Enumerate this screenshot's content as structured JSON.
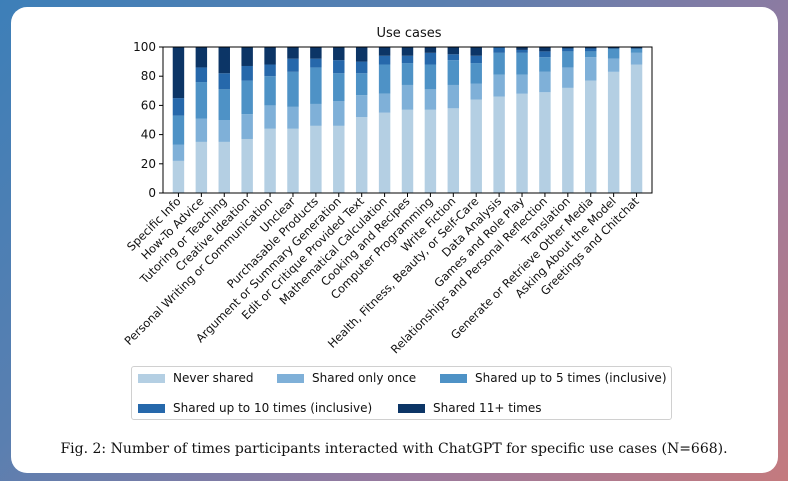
{
  "caption": "Fig. 2: Number of times participants interacted with ChatGPT for specific use cases (N=668).",
  "colors": {
    "series": [
      "#b4cfe3",
      "#7fb0d8",
      "#4e92c6",
      "#2668ab",
      "#0c3566"
    ],
    "background_start": "#3d7fb8",
    "background_end": "#c47a7e"
  },
  "chart_data": {
    "type": "bar",
    "stacked": true,
    "title": "Use cases",
    "xlabel": "",
    "ylabel": "",
    "ylim": [
      0,
      100
    ],
    "yticks": [
      0,
      20,
      40,
      60,
      80,
      100
    ],
    "grid": false,
    "legend_position": "below",
    "categories": [
      "Specific Info",
      "How-To Advice",
      "Tutoring or Teaching",
      "Creative Ideation",
      "Personal Writing or Communication",
      "Unclear",
      "Purchasable Products",
      "Argument or Summary Generation",
      "Edit or Critique Provided Text",
      "Mathematical Calculation",
      "Cooking and Recipes",
      "Computer Programming",
      "Write Fiction",
      "Health, Fitness, Beauty, or Self-Care",
      "Data Analysis",
      "Games and Role Play",
      "Relationships and Personal Reflection",
      "Translation",
      "Generate or Retrieve Other Media",
      "Asking About the Model",
      "Greetings and Chitchat"
    ],
    "series": [
      {
        "name": "Never shared",
        "values": [
          22,
          35,
          35,
          37,
          44,
          44,
          46,
          46,
          52,
          55,
          57,
          57,
          58,
          64,
          66,
          68,
          69,
          72,
          77,
          83,
          88
        ]
      },
      {
        "name": "Shared only once",
        "values": [
          11,
          16,
          15,
          17,
          16,
          15,
          15,
          17,
          15,
          13,
          17,
          14,
          16,
          11,
          15,
          13,
          14,
          14,
          16,
          9,
          8
        ]
      },
      {
        "name": "Shared up to 5 times (inclusive)",
        "values": [
          20,
          25,
          21,
          23,
          20,
          24,
          25,
          19,
          15,
          20,
          15,
          17,
          17,
          14,
          15,
          15,
          10,
          11,
          4,
          7,
          3
        ]
      },
      {
        "name": "Shared up to 10 times (inclusive)",
        "values": [
          12,
          10,
          11,
          10,
          8,
          9,
          6,
          9,
          8,
          6,
          5,
          8,
          4,
          5,
          4,
          2,
          4,
          2,
          2,
          0,
          0
        ]
      },
      {
        "name": "Shared 11+ times",
        "values": [
          35,
          14,
          18,
          13,
          12,
          8,
          8,
          9,
          10,
          6,
          6,
          4,
          5,
          6,
          0,
          2,
          3,
          1,
          1,
          1,
          1
        ]
      }
    ]
  }
}
